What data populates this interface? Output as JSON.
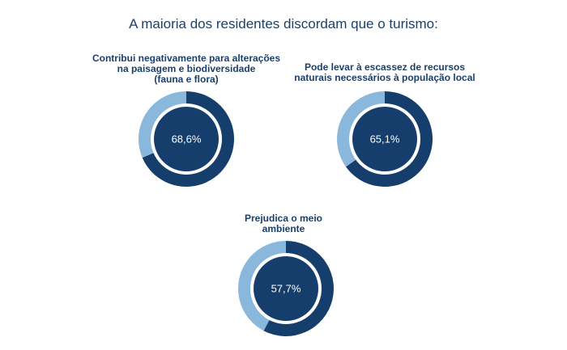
{
  "title": "A maioria dos residentes discordam que o turismo:",
  "colors": {
    "primary": "#163e6c",
    "secondary": "#8ab8dc",
    "background": "#ffffff"
  },
  "chart_data": [
    {
      "type": "pie",
      "title": "Contribui negativamente para alterações\nna paisagem e biodiversidade\n(fauna e flora)",
      "value": 68.6,
      "value_label": "68,6%"
    },
    {
      "type": "pie",
      "title": "Pode levar à escassez de recursos\nnaturais necessários à população local",
      "value": 65.1,
      "value_label": "65,1%"
    },
    {
      "type": "pie",
      "title": "Prejudica o meio\nambiente",
      "value": 57.7,
      "value_label": "57,7%"
    }
  ]
}
